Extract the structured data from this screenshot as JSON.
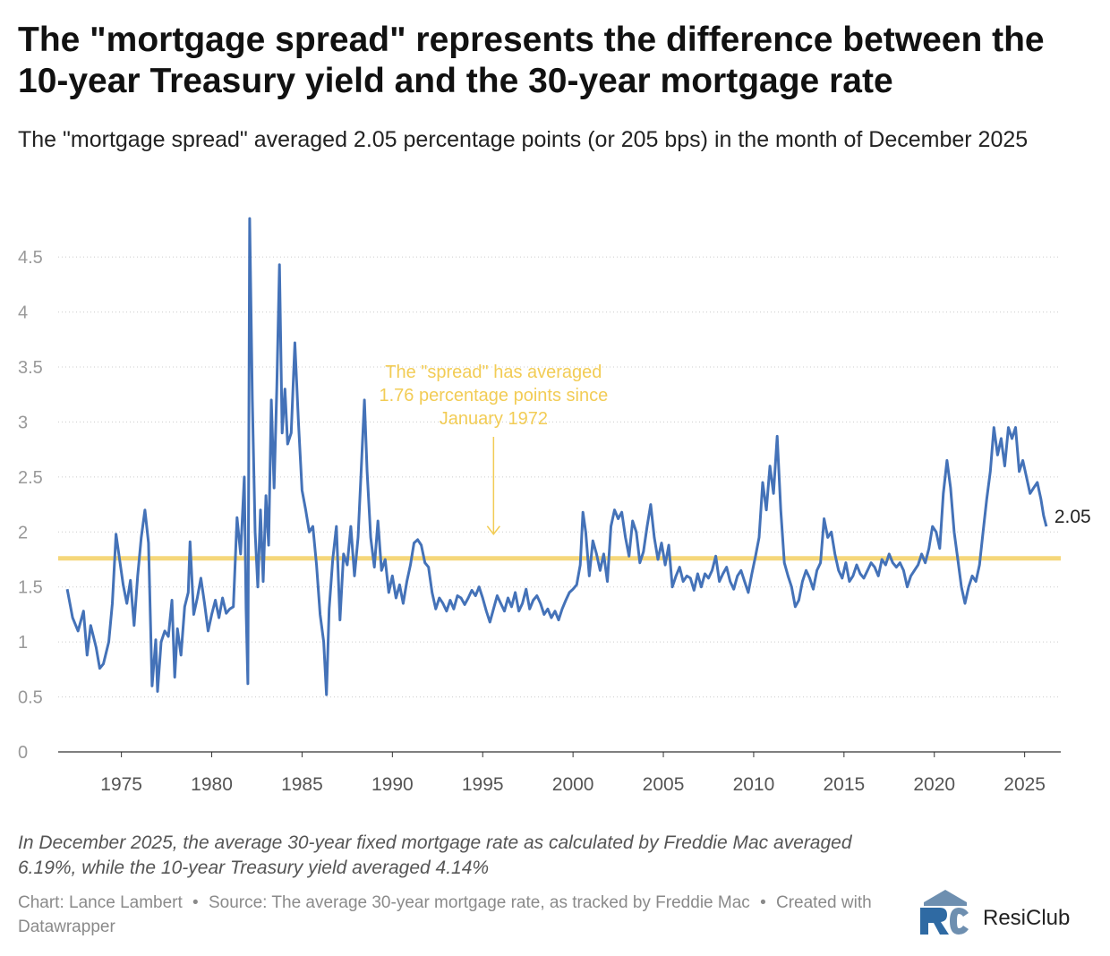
{
  "header": {
    "title": "The \"mortgage spread\" represents the difference between the 10-year Treasury yield and the 30-year mortgage rate",
    "subtitle": "The \"mortgage spread\" averaged 2.05 percentage points (or 205 bps) in the month of December 2025"
  },
  "colors": {
    "line": "#4472b8",
    "average": "#f5d77a",
    "annotation": "#f2cc55",
    "grid": "#cccccc",
    "tick": "#999999"
  },
  "chart_data": {
    "type": "line",
    "title": "The \"mortgage spread\" represents the difference between the 10-year Treasury yield and the 30-year mortgage rate",
    "subtitle": "The \"mortgage spread\" averaged 2.05 percentage points (or 205 bps) in the month of December 2025",
    "xlim": [
      1971.5,
      2027.0
    ],
    "ylim": [
      0,
      4.9
    ],
    "x_ticks": [
      "1975",
      "1980",
      "1985",
      "1990",
      "1995",
      "2000",
      "2005",
      "2010",
      "2015",
      "2020",
      "2025"
    ],
    "y_ticks": [
      "0",
      "0.5",
      "1",
      "1.5",
      "2",
      "2.5",
      "3",
      "3.5",
      "4",
      "4.5"
    ],
    "average_line": {
      "value": 1.76
    },
    "annotation": {
      "lines": [
        "The \"spread\" has averaged",
        "1.76 percentage points since",
        "January 1972"
      ],
      "x": 1995.6,
      "arrow_to_y": 1.98
    },
    "end_label": "2.05",
    "series": [
      {
        "points": [
          [
            1972.0,
            1.48
          ],
          [
            1972.3,
            1.22
          ],
          [
            1972.6,
            1.1
          ],
          [
            1972.9,
            1.28
          ],
          [
            1973.1,
            0.88
          ],
          [
            1973.3,
            1.15
          ],
          [
            1973.6,
            0.95
          ],
          [
            1973.8,
            0.76
          ],
          [
            1974.0,
            0.8
          ],
          [
            1974.3,
            1.0
          ],
          [
            1974.5,
            1.35
          ],
          [
            1974.7,
            1.98
          ],
          [
            1974.9,
            1.75
          ],
          [
            1975.1,
            1.52
          ],
          [
            1975.3,
            1.35
          ],
          [
            1975.5,
            1.56
          ],
          [
            1975.7,
            1.15
          ],
          [
            1975.9,
            1.6
          ],
          [
            1976.1,
            1.95
          ],
          [
            1976.3,
            2.2
          ],
          [
            1976.5,
            1.9
          ],
          [
            1976.7,
            0.6
          ],
          [
            1976.9,
            1.02
          ],
          [
            1977.0,
            0.55
          ],
          [
            1977.2,
            1.0
          ],
          [
            1977.4,
            1.1
          ],
          [
            1977.6,
            1.05
          ],
          [
            1977.8,
            1.38
          ],
          [
            1977.95,
            0.68
          ],
          [
            1978.1,
            1.12
          ],
          [
            1978.3,
            0.88
          ],
          [
            1978.5,
            1.32
          ],
          [
            1978.7,
            1.45
          ],
          [
            1978.8,
            1.91
          ],
          [
            1979.0,
            1.25
          ],
          [
            1979.2,
            1.4
          ],
          [
            1979.4,
            1.58
          ],
          [
            1979.6,
            1.35
          ],
          [
            1979.8,
            1.1
          ],
          [
            1980.0,
            1.25
          ],
          [
            1980.2,
            1.38
          ],
          [
            1980.4,
            1.22
          ],
          [
            1980.6,
            1.4
          ],
          [
            1980.8,
            1.26
          ],
          [
            1981.0,
            1.3
          ],
          [
            1981.2,
            1.32
          ],
          [
            1981.4,
            2.13
          ],
          [
            1981.6,
            1.8
          ],
          [
            1981.8,
            2.5
          ],
          [
            1981.9,
            1.3
          ],
          [
            1982.0,
            0.62
          ],
          [
            1982.1,
            4.85
          ],
          [
            1982.25,
            3.2
          ],
          [
            1982.4,
            2.0
          ],
          [
            1982.55,
            1.5
          ],
          [
            1982.7,
            2.2
          ],
          [
            1982.85,
            1.55
          ],
          [
            1983.0,
            2.33
          ],
          [
            1983.15,
            1.88
          ],
          [
            1983.3,
            3.2
          ],
          [
            1983.45,
            2.4
          ],
          [
            1983.6,
            3.3
          ],
          [
            1983.75,
            4.43
          ],
          [
            1983.9,
            2.9
          ],
          [
            1984.05,
            3.3
          ],
          [
            1984.2,
            2.8
          ],
          [
            1984.4,
            2.9
          ],
          [
            1984.6,
            3.72
          ],
          [
            1984.8,
            3.0
          ],
          [
            1985.0,
            2.38
          ],
          [
            1985.2,
            2.2
          ],
          [
            1985.4,
            2.0
          ],
          [
            1985.6,
            2.05
          ],
          [
            1985.8,
            1.7
          ],
          [
            1986.0,
            1.25
          ],
          [
            1986.2,
            1.0
          ],
          [
            1986.35,
            0.52
          ],
          [
            1986.5,
            1.3
          ],
          [
            1986.7,
            1.75
          ],
          [
            1986.9,
            2.05
          ],
          [
            1987.1,
            1.2
          ],
          [
            1987.3,
            1.8
          ],
          [
            1987.5,
            1.7
          ],
          [
            1987.7,
            2.05
          ],
          [
            1987.9,
            1.6
          ],
          [
            1988.1,
            1.95
          ],
          [
            1988.3,
            2.65
          ],
          [
            1988.45,
            3.2
          ],
          [
            1988.6,
            2.55
          ],
          [
            1988.8,
            1.95
          ],
          [
            1989.0,
            1.68
          ],
          [
            1989.2,
            2.1
          ],
          [
            1989.4,
            1.65
          ],
          [
            1989.6,
            1.75
          ],
          [
            1989.8,
            1.45
          ],
          [
            1990.0,
            1.6
          ],
          [
            1990.2,
            1.4
          ],
          [
            1990.4,
            1.52
          ],
          [
            1990.6,
            1.35
          ],
          [
            1990.8,
            1.55
          ],
          [
            1991.0,
            1.7
          ],
          [
            1991.2,
            1.9
          ],
          [
            1991.4,
            1.93
          ],
          [
            1991.6,
            1.88
          ],
          [
            1991.8,
            1.72
          ],
          [
            1992.0,
            1.68
          ],
          [
            1992.2,
            1.45
          ],
          [
            1992.4,
            1.3
          ],
          [
            1992.6,
            1.4
          ],
          [
            1992.8,
            1.35
          ],
          [
            1993.0,
            1.28
          ],
          [
            1993.2,
            1.38
          ],
          [
            1993.4,
            1.3
          ],
          [
            1993.6,
            1.42
          ],
          [
            1993.8,
            1.4
          ],
          [
            1994.0,
            1.34
          ],
          [
            1994.2,
            1.4
          ],
          [
            1994.4,
            1.47
          ],
          [
            1994.6,
            1.42
          ],
          [
            1994.8,
            1.5
          ],
          [
            1995.0,
            1.4
          ],
          [
            1995.2,
            1.28
          ],
          [
            1995.4,
            1.18
          ],
          [
            1995.6,
            1.3
          ],
          [
            1995.8,
            1.42
          ],
          [
            1996.0,
            1.35
          ],
          [
            1996.2,
            1.28
          ],
          [
            1996.4,
            1.4
          ],
          [
            1996.6,
            1.32
          ],
          [
            1996.8,
            1.45
          ],
          [
            1997.0,
            1.28
          ],
          [
            1997.2,
            1.35
          ],
          [
            1997.4,
            1.48
          ],
          [
            1997.6,
            1.3
          ],
          [
            1997.8,
            1.38
          ],
          [
            1998.0,
            1.42
          ],
          [
            1998.2,
            1.35
          ],
          [
            1998.4,
            1.25
          ],
          [
            1998.6,
            1.3
          ],
          [
            1998.8,
            1.22
          ],
          [
            1999.0,
            1.28
          ],
          [
            1999.2,
            1.2
          ],
          [
            1999.4,
            1.3
          ],
          [
            1999.6,
            1.38
          ],
          [
            1999.8,
            1.45
          ],
          [
            2000.0,
            1.48
          ],
          [
            2000.2,
            1.52
          ],
          [
            2000.4,
            1.7
          ],
          [
            2000.55,
            2.18
          ],
          [
            2000.7,
            2.0
          ],
          [
            2000.9,
            1.6
          ],
          [
            2001.1,
            1.92
          ],
          [
            2001.3,
            1.8
          ],
          [
            2001.5,
            1.65
          ],
          [
            2001.7,
            1.8
          ],
          [
            2001.9,
            1.55
          ],
          [
            2002.1,
            2.05
          ],
          [
            2002.3,
            2.2
          ],
          [
            2002.5,
            2.12
          ],
          [
            2002.7,
            2.18
          ],
          [
            2002.9,
            1.95
          ],
          [
            2003.1,
            1.78
          ],
          [
            2003.3,
            2.1
          ],
          [
            2003.5,
            2.0
          ],
          [
            2003.7,
            1.72
          ],
          [
            2003.9,
            1.82
          ],
          [
            2004.1,
            2.05
          ],
          [
            2004.3,
            2.25
          ],
          [
            2004.5,
            1.95
          ],
          [
            2004.7,
            1.75
          ],
          [
            2004.9,
            1.9
          ],
          [
            2005.1,
            1.7
          ],
          [
            2005.3,
            1.88
          ],
          [
            2005.5,
            1.5
          ],
          [
            2005.7,
            1.6
          ],
          [
            2005.9,
            1.68
          ],
          [
            2006.1,
            1.55
          ],
          [
            2006.3,
            1.6
          ],
          [
            2006.5,
            1.58
          ],
          [
            2006.7,
            1.47
          ],
          [
            2006.9,
            1.62
          ],
          [
            2007.1,
            1.5
          ],
          [
            2007.3,
            1.62
          ],
          [
            2007.5,
            1.58
          ],
          [
            2007.7,
            1.65
          ],
          [
            2007.9,
            1.78
          ],
          [
            2008.1,
            1.55
          ],
          [
            2008.3,
            1.62
          ],
          [
            2008.5,
            1.68
          ],
          [
            2008.7,
            1.55
          ],
          [
            2008.9,
            1.48
          ],
          [
            2009.1,
            1.6
          ],
          [
            2009.3,
            1.65
          ],
          [
            2009.5,
            1.55
          ],
          [
            2009.7,
            1.45
          ],
          [
            2009.9,
            1.62
          ],
          [
            2010.1,
            1.78
          ],
          [
            2010.3,
            1.95
          ],
          [
            2010.5,
            2.45
          ],
          [
            2010.7,
            2.2
          ],
          [
            2010.9,
            2.6
          ],
          [
            2011.1,
            2.35
          ],
          [
            2011.3,
            2.87
          ],
          [
            2011.5,
            2.2
          ],
          [
            2011.7,
            1.72
          ],
          [
            2011.9,
            1.6
          ],
          [
            2012.1,
            1.5
          ],
          [
            2012.3,
            1.32
          ],
          [
            2012.5,
            1.38
          ],
          [
            2012.7,
            1.55
          ],
          [
            2012.9,
            1.65
          ],
          [
            2013.1,
            1.58
          ],
          [
            2013.3,
            1.48
          ],
          [
            2013.5,
            1.65
          ],
          [
            2013.7,
            1.72
          ],
          [
            2013.9,
            2.12
          ],
          [
            2014.1,
            1.95
          ],
          [
            2014.3,
            2.0
          ],
          [
            2014.5,
            1.8
          ],
          [
            2014.7,
            1.65
          ],
          [
            2014.9,
            1.58
          ],
          [
            2015.1,
            1.72
          ],
          [
            2015.3,
            1.55
          ],
          [
            2015.5,
            1.6
          ],
          [
            2015.7,
            1.7
          ],
          [
            2015.9,
            1.62
          ],
          [
            2016.1,
            1.58
          ],
          [
            2016.3,
            1.65
          ],
          [
            2016.5,
            1.72
          ],
          [
            2016.7,
            1.68
          ],
          [
            2016.9,
            1.6
          ],
          [
            2017.1,
            1.75
          ],
          [
            2017.3,
            1.7
          ],
          [
            2017.5,
            1.8
          ],
          [
            2017.7,
            1.72
          ],
          [
            2017.9,
            1.68
          ],
          [
            2018.1,
            1.72
          ],
          [
            2018.3,
            1.65
          ],
          [
            2018.5,
            1.5
          ],
          [
            2018.7,
            1.6
          ],
          [
            2018.9,
            1.65
          ],
          [
            2019.1,
            1.7
          ],
          [
            2019.3,
            1.8
          ],
          [
            2019.5,
            1.72
          ],
          [
            2019.7,
            1.85
          ],
          [
            2019.9,
            2.05
          ],
          [
            2020.1,
            2.0
          ],
          [
            2020.3,
            1.85
          ],
          [
            2020.5,
            2.35
          ],
          [
            2020.7,
            2.65
          ],
          [
            2020.9,
            2.4
          ],
          [
            2021.1,
            2.0
          ],
          [
            2021.3,
            1.75
          ],
          [
            2021.5,
            1.5
          ],
          [
            2021.7,
            1.35
          ],
          [
            2021.9,
            1.5
          ],
          [
            2022.1,
            1.6
          ],
          [
            2022.3,
            1.55
          ],
          [
            2022.5,
            1.7
          ],
          [
            2022.7,
            2.0
          ],
          [
            2022.9,
            2.3
          ],
          [
            2023.1,
            2.55
          ],
          [
            2023.3,
            2.95
          ],
          [
            2023.5,
            2.7
          ],
          [
            2023.7,
            2.85
          ],
          [
            2023.9,
            2.6
          ],
          [
            2024.1,
            2.95
          ],
          [
            2024.3,
            2.85
          ],
          [
            2024.5,
            2.95
          ],
          [
            2024.7,
            2.55
          ],
          [
            2024.9,
            2.65
          ],
          [
            2025.1,
            2.5
          ],
          [
            2025.3,
            2.35
          ],
          [
            2025.5,
            2.4
          ],
          [
            2025.7,
            2.45
          ],
          [
            2025.9,
            2.3
          ],
          [
            2026.05,
            2.15
          ],
          [
            2026.2,
            2.05
          ]
        ]
      }
    ]
  },
  "footer": {
    "notes": "In December 2025, the average 30-year fixed mortgage rate as calculated by Freddie Mac averaged 6.19%, while the 10-year Treasury yield averaged 4.14%",
    "credit": "Chart: Lance Lambert",
    "bullet": "•",
    "source": "Source: The average 30-year mortgage rate, as tracked by Freddie Mac",
    "tool": "Created with Datawrapper",
    "brand": "ResiClub"
  }
}
